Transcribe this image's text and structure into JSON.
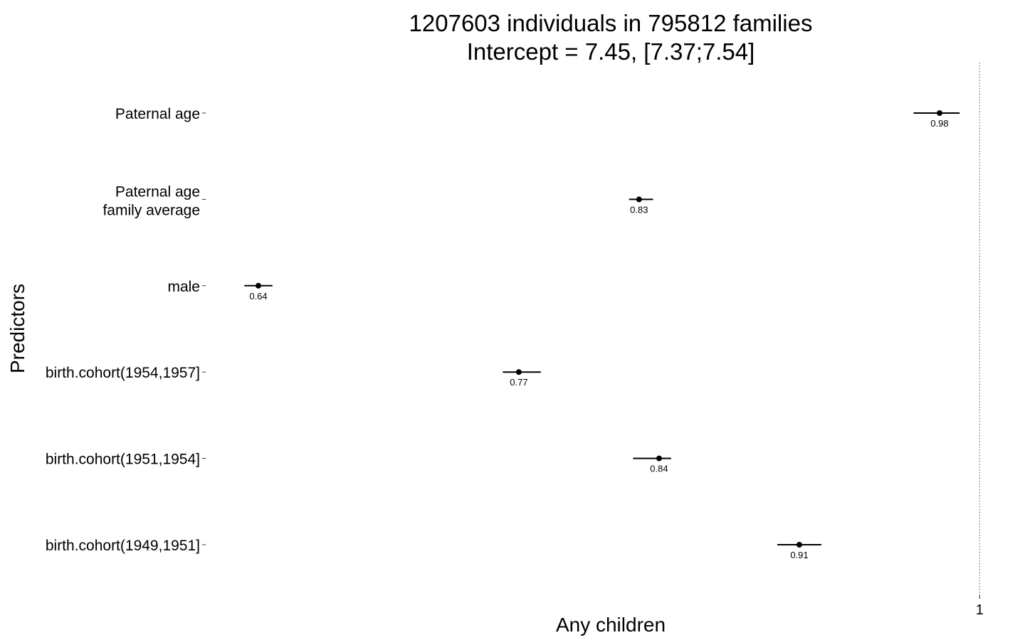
{
  "chart_data": {
    "type": "forest",
    "title": [
      "1207603 individuals in 795812 families",
      "Intercept = 7.45, [7.37;7.54]"
    ],
    "xlabel": "Any children",
    "ylabel": "Predictors",
    "x_tick_labels": [
      {
        "value": 1.0,
        "label": "1"
      }
    ],
    "reference_line": 1.0,
    "predictors": [
      {
        "label": [
          "Paternal age"
        ],
        "estimate": 0.98,
        "ci_low": 0.967,
        "ci_high": 0.99,
        "value_label": "0.98"
      },
      {
        "label": [
          "Paternal age",
          "family average"
        ],
        "estimate": 0.83,
        "ci_low": 0.825,
        "ci_high": 0.837,
        "value_label": "0.83"
      },
      {
        "label": [
          "male"
        ],
        "estimate": 0.64,
        "ci_low": 0.633,
        "ci_high": 0.647,
        "value_label": "0.64"
      },
      {
        "label": [
          "birth.cohort(1954,1957]"
        ],
        "estimate": 0.77,
        "ci_low": 0.762,
        "ci_high": 0.781,
        "value_label": "0.77"
      },
      {
        "label": [
          "birth.cohort(1951,1954]"
        ],
        "estimate": 0.84,
        "ci_low": 0.827,
        "ci_high": 0.846,
        "value_label": "0.84"
      },
      {
        "label": [
          "birth.cohort(1949,1951]"
        ],
        "estimate": 0.91,
        "ci_low": 0.899,
        "ci_high": 0.921,
        "value_label": "0.91"
      }
    ],
    "grid": false,
    "legend": "none"
  }
}
